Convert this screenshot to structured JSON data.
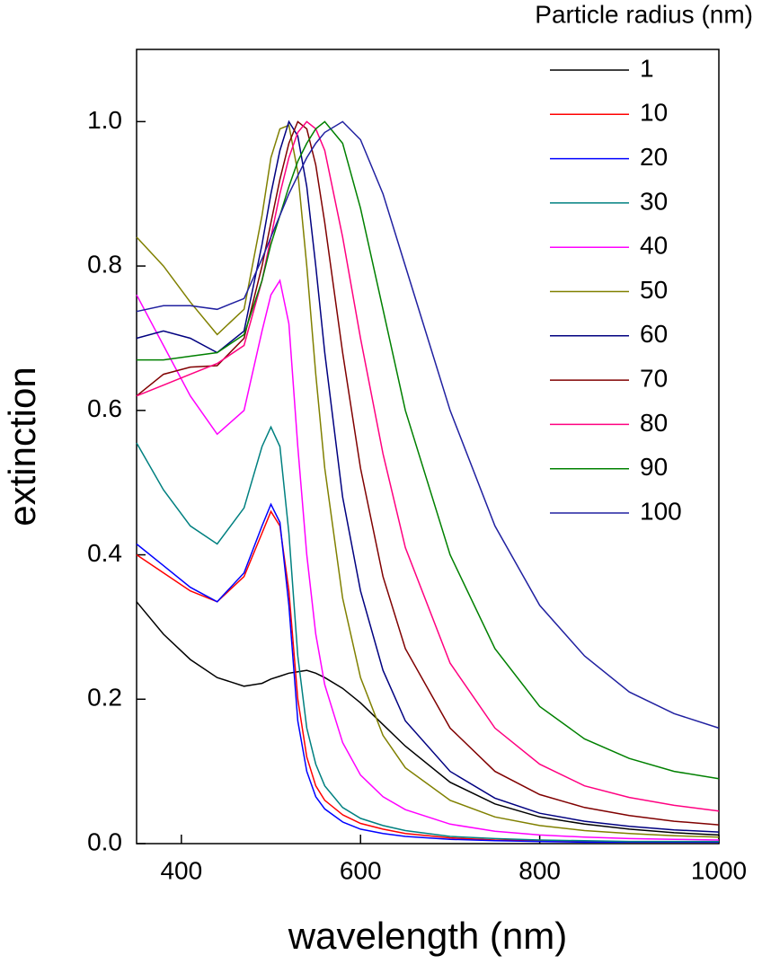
{
  "chart_data": {
    "type": "line",
    "x_label": "wavelength (nm)",
    "y_label": "extinction",
    "legend_title": "Particle radius (nm)",
    "legend": "upper right",
    "xlim": [
      350,
      1000
    ],
    "ylim": [
      0,
      1.1
    ],
    "xticks": [
      400,
      600,
      800,
      1000
    ],
    "yticks": [
      {
        "value": 0,
        "label": "0.0"
      },
      0.2,
      0.4,
      0.6,
      0.8,
      {
        "value": 1,
        "label": "1.0"
      }
    ],
    "x": [
      350,
      380,
      410,
      440,
      470,
      490,
      500,
      510,
      520,
      530,
      540,
      550,
      560,
      580,
      600,
      625,
      650,
      700,
      750,
      800,
      850,
      900,
      950,
      1000
    ],
    "series": [
      {
        "name": "1",
        "color": "#000000",
        "values": [
          0.335,
          0.29,
          0.255,
          0.23,
          0.218,
          0.222,
          0.228,
          0.232,
          0.236,
          0.238,
          0.24,
          0.236,
          0.23,
          0.215,
          0.195,
          0.165,
          0.135,
          0.085,
          0.055,
          0.037,
          0.027,
          0.02,
          0.015,
          0.012
        ]
      },
      {
        "name": "10",
        "color": "#ff0000",
        "values": [
          0.4,
          0.375,
          0.35,
          0.335,
          0.37,
          0.43,
          0.46,
          0.44,
          0.35,
          0.2,
          0.12,
          0.08,
          0.06,
          0.04,
          0.028,
          0.02,
          0.014,
          0.008,
          0.005,
          0.004,
          0.003,
          0.002,
          0.002,
          0.002
        ]
      },
      {
        "name": "20",
        "color": "#0000ff",
        "values": [
          0.415,
          0.385,
          0.355,
          0.335,
          0.375,
          0.44,
          0.47,
          0.445,
          0.33,
          0.17,
          0.1,
          0.065,
          0.048,
          0.03,
          0.02,
          0.014,
          0.01,
          0.006,
          0.004,
          0.003,
          0.002,
          0.002,
          0.002,
          0.002
        ]
      },
      {
        "name": "30",
        "color": "#008080",
        "values": [
          0.555,
          0.49,
          0.44,
          0.415,
          0.465,
          0.55,
          0.577,
          0.55,
          0.43,
          0.26,
          0.16,
          0.11,
          0.08,
          0.05,
          0.035,
          0.025,
          0.018,
          0.01,
          0.007,
          0.005,
          0.004,
          0.003,
          0.003,
          0.003
        ]
      },
      {
        "name": "40",
        "color": "#ff00ff",
        "values": [
          0.76,
          0.69,
          0.62,
          0.567,
          0.6,
          0.71,
          0.76,
          0.78,
          0.72,
          0.55,
          0.4,
          0.29,
          0.22,
          0.14,
          0.095,
          0.065,
          0.047,
          0.027,
          0.017,
          0.012,
          0.009,
          0.007,
          0.006,
          0.005
        ]
      },
      {
        "name": "50",
        "color": "#808000",
        "values": [
          0.84,
          0.8,
          0.75,
          0.705,
          0.74,
          0.87,
          0.95,
          0.99,
          0.995,
          0.93,
          0.8,
          0.65,
          0.52,
          0.34,
          0.23,
          0.15,
          0.105,
          0.06,
          0.037,
          0.025,
          0.018,
          0.014,
          0.011,
          0.009
        ]
      },
      {
        "name": "60",
        "color": "#000080",
        "values": [
          0.7,
          0.71,
          0.7,
          0.68,
          0.71,
          0.83,
          0.9,
          0.96,
          1.0,
          0.98,
          0.91,
          0.8,
          0.68,
          0.48,
          0.35,
          0.24,
          0.17,
          0.1,
          0.063,
          0.042,
          0.031,
          0.024,
          0.019,
          0.016
        ]
      },
      {
        "name": "70",
        "color": "#800000",
        "values": [
          0.62,
          0.65,
          0.66,
          0.662,
          0.7,
          0.8,
          0.86,
          0.92,
          0.97,
          1.0,
          0.99,
          0.94,
          0.86,
          0.68,
          0.52,
          0.37,
          0.27,
          0.16,
          0.1,
          0.068,
          0.05,
          0.039,
          0.031,
          0.026
        ]
      },
      {
        "name": "80",
        "color": "#ff0080",
        "values": [
          0.62,
          0.635,
          0.65,
          0.665,
          0.69,
          0.78,
          0.84,
          0.9,
          0.95,
          0.985,
          1.0,
          0.99,
          0.96,
          0.84,
          0.7,
          0.54,
          0.41,
          0.25,
          0.16,
          0.11,
          0.08,
          0.064,
          0.053,
          0.045
        ]
      },
      {
        "name": "90",
        "color": "#008000",
        "values": [
          0.67,
          0.67,
          0.675,
          0.68,
          0.705,
          0.78,
          0.83,
          0.87,
          0.91,
          0.945,
          0.97,
          0.99,
          1.0,
          0.97,
          0.88,
          0.74,
          0.6,
          0.4,
          0.27,
          0.19,
          0.145,
          0.118,
          0.1,
          0.09
        ]
      },
      {
        "name": "100",
        "color": "#2020a0",
        "values": [
          0.737,
          0.745,
          0.745,
          0.74,
          0.755,
          0.81,
          0.84,
          0.87,
          0.9,
          0.925,
          0.95,
          0.97,
          0.985,
          1.0,
          0.975,
          0.9,
          0.8,
          0.6,
          0.44,
          0.33,
          0.26,
          0.21,
          0.18,
          0.16
        ]
      }
    ]
  }
}
